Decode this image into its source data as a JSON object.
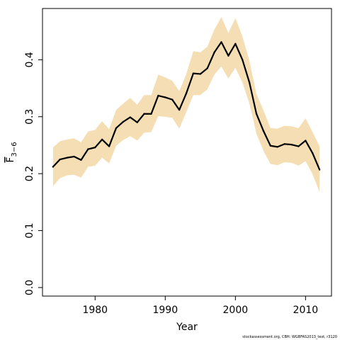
{
  "chart_data": {
    "type": "line",
    "xlabel": "Year",
    "ylabel": {
      "main": "F",
      "subscript": "3−6"
    },
    "xlim": [
      1972.5,
      2013.7
    ],
    "ylim": [
      -0.015,
      0.49
    ],
    "xticks": [
      1980,
      1990,
      2000,
      2010
    ],
    "yticks": [
      0.0,
      0.1,
      0.2,
      0.3,
      0.4
    ],
    "ytick_labels": [
      "0.0",
      "0.1",
      "0.2",
      "0.3",
      "0.4"
    ],
    "grid": false,
    "band_color": "#f5deb3",
    "line_color": "#000000",
    "series": [
      {
        "x": [
          1974,
          1975,
          1976,
          1977,
          1978,
          1979,
          1980,
          1981,
          1982,
          1983,
          1984,
          1985,
          1986,
          1987,
          1988,
          1989,
          1990,
          1991,
          1992,
          1993,
          1994,
          1995,
          1996,
          1997,
          1998,
          1999,
          2000,
          2001,
          2002,
          2003,
          2004,
          2005,
          2006,
          2007,
          2008,
          2009,
          2010,
          2011,
          2012
        ],
        "estimate": [
          0.212,
          0.225,
          0.228,
          0.23,
          0.224,
          0.243,
          0.246,
          0.26,
          0.248,
          0.28,
          0.291,
          0.299,
          0.29,
          0.305,
          0.305,
          0.337,
          0.334,
          0.33,
          0.312,
          0.341,
          0.376,
          0.375,
          0.385,
          0.413,
          0.431,
          0.407,
          0.428,
          0.4,
          0.36,
          0.305,
          0.275,
          0.249,
          0.247,
          0.252,
          0.251,
          0.248,
          0.258,
          0.236,
          0.207
        ],
        "lower": [
          0.178,
          0.192,
          0.197,
          0.198,
          0.193,
          0.212,
          0.214,
          0.228,
          0.218,
          0.249,
          0.259,
          0.266,
          0.258,
          0.272,
          0.273,
          0.301,
          0.3,
          0.298,
          0.279,
          0.308,
          0.338,
          0.338,
          0.348,
          0.374,
          0.388,
          0.367,
          0.386,
          0.36,
          0.323,
          0.27,
          0.24,
          0.217,
          0.215,
          0.22,
          0.219,
          0.214,
          0.222,
          0.199,
          0.168
        ],
        "upper": [
          0.246,
          0.257,
          0.26,
          0.262,
          0.255,
          0.274,
          0.277,
          0.292,
          0.278,
          0.312,
          0.323,
          0.333,
          0.321,
          0.338,
          0.338,
          0.374,
          0.369,
          0.363,
          0.345,
          0.375,
          0.415,
          0.413,
          0.423,
          0.453,
          0.475,
          0.447,
          0.473,
          0.441,
          0.398,
          0.34,
          0.311,
          0.28,
          0.279,
          0.284,
          0.283,
          0.28,
          0.297,
          0.273,
          0.248
        ]
      }
    ]
  },
  "footer": "stockassessment.org, CBH: WGBFAS2013_test, r3120"
}
